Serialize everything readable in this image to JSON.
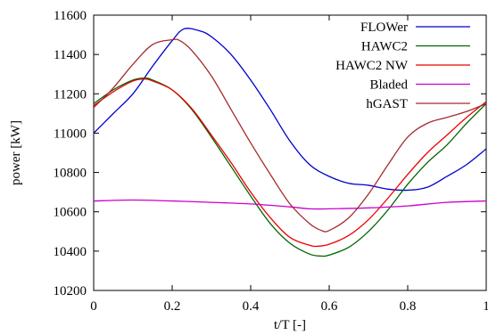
{
  "chart_data": {
    "type": "line",
    "xlabel": "t/T [-]",
    "ylabel": "power [kW]",
    "xlim": [
      0,
      1
    ],
    "ylim": [
      10200,
      11600
    ],
    "xticks": [
      0,
      0.2,
      0.4,
      0.6,
      0.8,
      1
    ],
    "xtick_labels": [
      "0",
      "0.2",
      "0.4",
      "0.6",
      "0.8",
      "1"
    ],
    "yticks": [
      10200,
      10400,
      10600,
      10800,
      11000,
      11200,
      11400,
      11600
    ],
    "ytick_labels": [
      "10200",
      "10400",
      "10600",
      "10800",
      "11000",
      "11200",
      "11400",
      "11600"
    ],
    "grid": false,
    "legend_position": "top-right",
    "series": [
      {
        "name": "FLOWer",
        "color": "#0000cc",
        "x": [
          0,
          0.05,
          0.1,
          0.15,
          0.2,
          0.23,
          0.27,
          0.3,
          0.35,
          0.4,
          0.45,
          0.5,
          0.55,
          0.6,
          0.65,
          0.7,
          0.75,
          0.8,
          0.85,
          0.9,
          0.95,
          1.0
        ],
        "y": [
          11000,
          11100,
          11200,
          11340,
          11470,
          11530,
          11520,
          11490,
          11400,
          11270,
          11120,
          10960,
          10840,
          10780,
          10745,
          10735,
          10715,
          10710,
          10725,
          10780,
          10840,
          10920
        ]
      },
      {
        "name": "HAWC2",
        "color": "#006400",
        "x": [
          0,
          0.05,
          0.1,
          0.13,
          0.15,
          0.2,
          0.25,
          0.3,
          0.35,
          0.4,
          0.45,
          0.5,
          0.55,
          0.58,
          0.6,
          0.65,
          0.7,
          0.75,
          0.8,
          0.85,
          0.9,
          0.95,
          1.0
        ],
        "y": [
          11150,
          11220,
          11270,
          11280,
          11270,
          11220,
          11120,
          10980,
          10830,
          10680,
          10540,
          10440,
          10385,
          10375,
          10380,
          10420,
          10500,
          10610,
          10740,
          10850,
          10940,
          11050,
          11150
        ]
      },
      {
        "name": "HAWC2 NW",
        "color": "#ee0000",
        "x": [
          0,
          0.05,
          0.1,
          0.13,
          0.15,
          0.2,
          0.25,
          0.3,
          0.35,
          0.4,
          0.45,
          0.5,
          0.55,
          0.57,
          0.6,
          0.65,
          0.7,
          0.75,
          0.8,
          0.85,
          0.9,
          0.95,
          1.0
        ],
        "y": [
          11140,
          11210,
          11265,
          11275,
          11265,
          11220,
          11125,
          10990,
          10850,
          10700,
          10570,
          10470,
          10430,
          10425,
          10435,
          10480,
          10560,
          10670,
          10790,
          10900,
          10990,
          11080,
          11160
        ]
      },
      {
        "name": "Bladed",
        "color": "#cc00cc",
        "x": [
          0,
          0.1,
          0.2,
          0.3,
          0.4,
          0.5,
          0.55,
          0.6,
          0.7,
          0.8,
          0.9,
          1.0
        ],
        "y": [
          10655,
          10660,
          10655,
          10648,
          10640,
          10625,
          10615,
          10615,
          10620,
          10630,
          10648,
          10655
        ]
      },
      {
        "name": "hGAST",
        "color": "#a52a2a",
        "x": [
          0,
          0.05,
          0.1,
          0.15,
          0.2,
          0.22,
          0.25,
          0.3,
          0.35,
          0.4,
          0.45,
          0.5,
          0.55,
          0.58,
          0.6,
          0.65,
          0.7,
          0.75,
          0.8,
          0.85,
          0.9,
          0.95,
          1.0
        ],
        "y": [
          11130,
          11230,
          11350,
          11450,
          11475,
          11470,
          11420,
          11290,
          11120,
          10950,
          10790,
          10640,
          10540,
          10505,
          10505,
          10570,
          10690,
          10840,
          10980,
          11050,
          11080,
          11110,
          11150
        ]
      }
    ]
  }
}
